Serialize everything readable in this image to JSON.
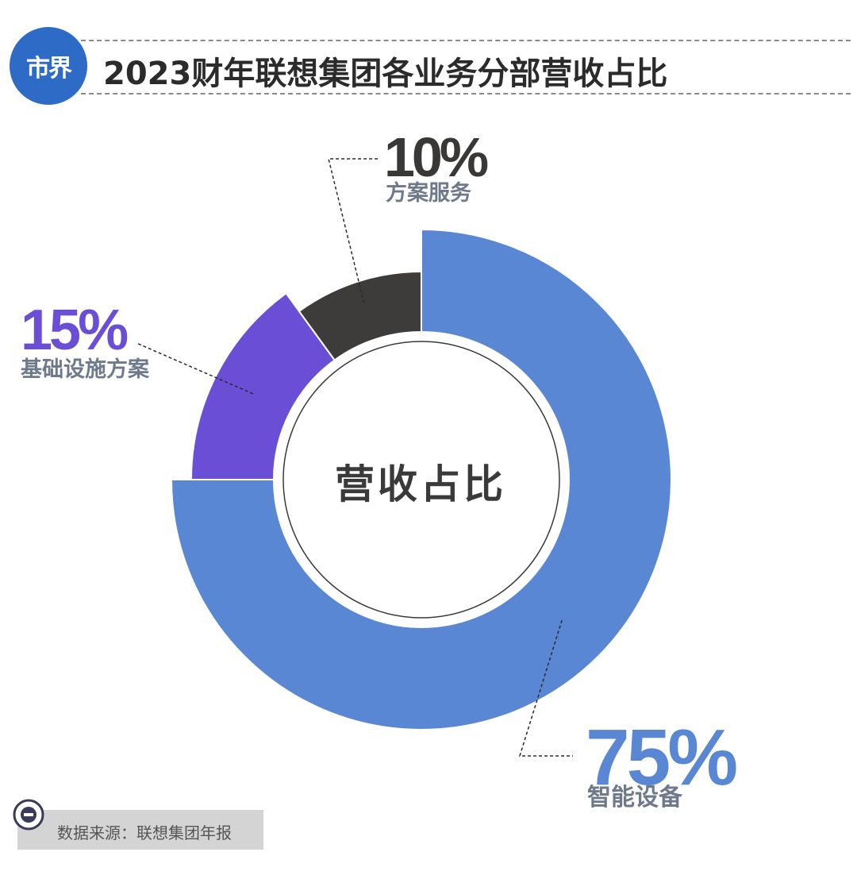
{
  "header": {
    "logo_text": "市界",
    "title": "2023财年联想集团各业务分部营收占比"
  },
  "chart_data": {
    "type": "pie",
    "title": "2023财年联想集团各业务分部营收占比",
    "center_label": "营收占比",
    "categories": [
      "智能设备",
      "基础设施方案",
      "方案服务"
    ],
    "values": [
      75,
      15,
      10
    ],
    "labels": [
      "75%",
      "15%",
      "10%"
    ],
    "colors": [
      "#5a87d3",
      "#6a4fd6",
      "#3e3b3b"
    ],
    "label_colors": {
      "pct": [
        "#5a87d3",
        "#6a4fd6",
        "#3a3737"
      ],
      "category": [
        "#6e7a8c",
        "#6e7a8c",
        "#6e7a8c"
      ]
    }
  },
  "footer": {
    "source": "数据来源：联想集团年报"
  }
}
